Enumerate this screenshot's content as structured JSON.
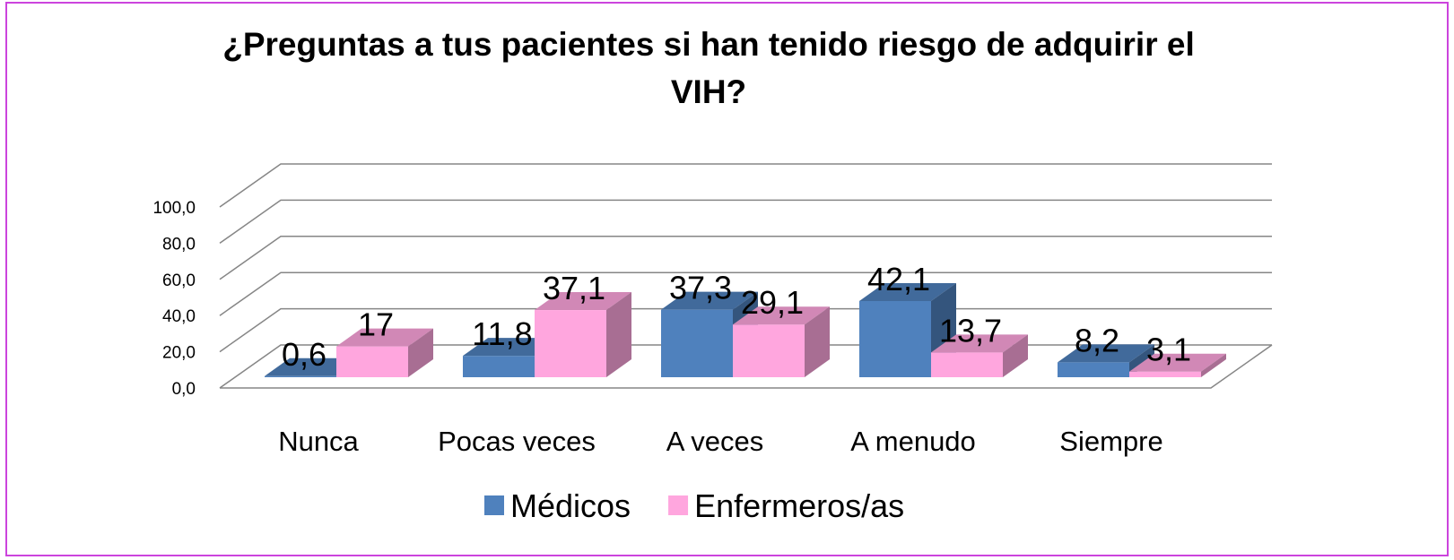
{
  "chart_data": {
    "type": "bar3d",
    "title": "¿Preguntas a tus pacientes si han tenido riesgo de adquirir el VIH?",
    "categories": [
      "Nunca",
      "Pocas veces",
      "A veces",
      "A menudo",
      "Siempre"
    ],
    "series": [
      {
        "name": "Médicos",
        "color": "#4f81bd",
        "values": [
          0.6,
          11.8,
          37.3,
          42.1,
          8.2
        ],
        "value_labels": [
          "0,6",
          "11,8",
          "37,3",
          "42,1",
          "8,2"
        ]
      },
      {
        "name": "Enfermeros/as",
        "color": "#ffa6de",
        "values": [
          17,
          37.1,
          29.1,
          13.7,
          3.1
        ],
        "value_labels": [
          "17",
          "37,1",
          "29,1",
          "13,7",
          "3,1"
        ]
      }
    ],
    "ylim": [
      0,
      100
    ],
    "yticks": [
      {
        "value": 0,
        "label": "0,0"
      },
      {
        "value": 20,
        "label": "20,0"
      },
      {
        "value": 40,
        "label": "40,0"
      },
      {
        "value": 60,
        "label": "60,0"
      },
      {
        "value": 80,
        "label": "80,0"
      },
      {
        "value": 100,
        "label": "100,0"
      }
    ],
    "grid": true,
    "legend": "bottom"
  }
}
